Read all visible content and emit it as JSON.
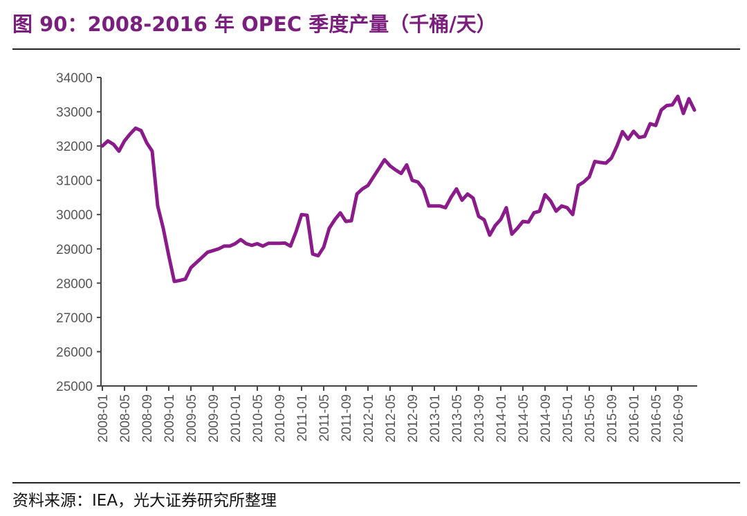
{
  "figure": {
    "title": "图 90：2008-2016 年 OPEC 季度产量（千桶/天）",
    "source": "资料来源：IEA，光大证券研究所整理"
  },
  "chart_data": {
    "type": "line",
    "title": "图 90：2008-2016 年 OPEC 季度产量（千桶/天）",
    "xlabel": "",
    "ylabel": "",
    "ylim": [
      25000,
      34000
    ],
    "yticks": [
      25000,
      26000,
      27000,
      28000,
      29000,
      30000,
      31000,
      32000,
      33000,
      34000
    ],
    "xticks": [
      "2008-01",
      "2008-05",
      "2008-09",
      "2009-01",
      "2009-05",
      "2009-09",
      "2010-01",
      "2010-05",
      "2010-09",
      "2011-01",
      "2011-05",
      "2011-09",
      "2012-01",
      "2012-05",
      "2012-09",
      "2013-01",
      "2013-05",
      "2013-09",
      "2014-01",
      "2014-05",
      "2014-09",
      "2015-01",
      "2015-05",
      "2015-09",
      "2016-01",
      "2016-05",
      "2016-09"
    ],
    "grid": false,
    "legend": "none",
    "line_color": "#8b1a8b",
    "series": [
      {
        "values": [
          32000,
          32150,
          32050,
          31850,
          32150,
          32350,
          32520,
          32450,
          32100,
          31850,
          30250,
          29600,
          28800,
          28050,
          28080,
          28120,
          28450,
          28600,
          28750,
          28900,
          28950,
          29000,
          29080,
          29080,
          29150,
          29270,
          29150,
          29100,
          29150,
          29080,
          29160,
          29160,
          29160,
          29170,
          29080,
          29500,
          30000,
          29980,
          28850,
          28800,
          29050,
          29600,
          29850,
          30050,
          29800,
          29820,
          30600,
          30750,
          30850,
          31100,
          31350,
          31600,
          31420,
          31300,
          31200,
          31450,
          31000,
          30950,
          30750,
          30250,
          30250,
          30250,
          30200,
          30500,
          30750,
          30420,
          30600,
          30480,
          29950,
          29850,
          29400,
          29680,
          29860,
          30200,
          29430,
          29600,
          29800,
          29780,
          30050,
          30100,
          30580,
          30400,
          30100,
          30250,
          30200,
          30000,
          30850,
          30950,
          31100,
          31550,
          31520,
          31500,
          31650,
          32000,
          32420,
          32200,
          32430,
          32250,
          32280,
          32650,
          32600,
          33050,
          33180,
          33200,
          33450,
          32950,
          33380,
          33050
        ]
      }
    ]
  }
}
